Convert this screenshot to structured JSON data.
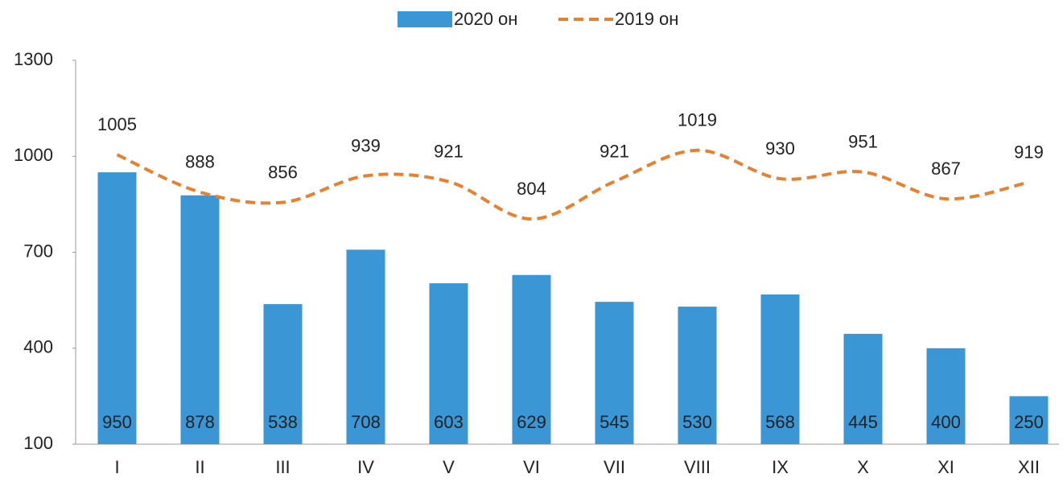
{
  "chart_data": {
    "type": "bar",
    "categories": [
      "I",
      "II",
      "III",
      "IV",
      "V",
      "VI",
      "VII",
      "VIII",
      "IX",
      "X",
      "XI",
      "XII"
    ],
    "series": [
      {
        "name": "2020 он",
        "type": "bar",
        "color": "#3a96d4",
        "values": [
          950,
          878,
          538,
          708,
          603,
          629,
          545,
          530,
          568,
          445,
          400,
          250
        ]
      },
      {
        "name": "2019 он",
        "type": "line",
        "color": "#e8812f",
        "values": [
          1005,
          888,
          856,
          939,
          921,
          804,
          921,
          1019,
          930,
          951,
          867,
          919
        ]
      }
    ],
    "ylim": [
      100,
      1300
    ],
    "yticks": [
      100,
      400,
      700,
      1000,
      1300
    ],
    "legend": "top"
  }
}
